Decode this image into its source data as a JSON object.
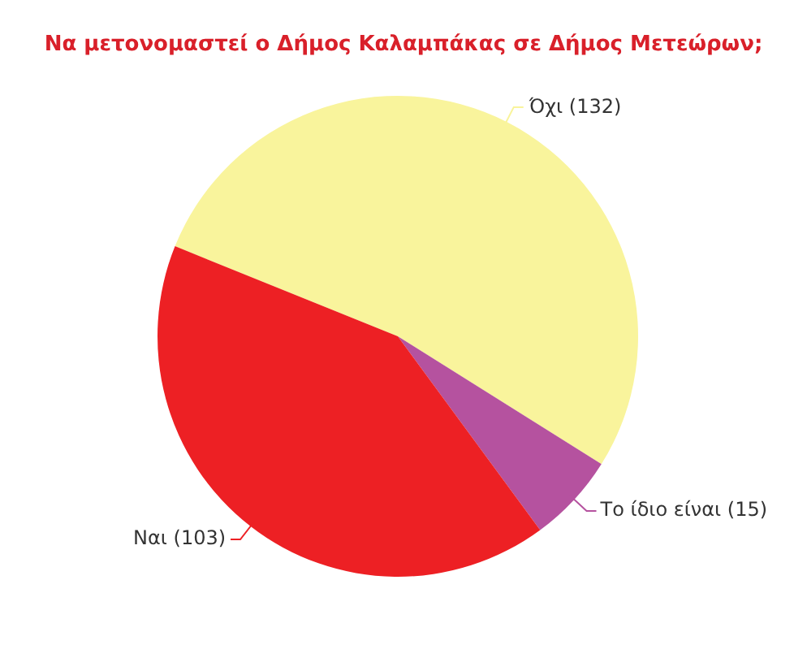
{
  "chart_data": {
    "type": "pie",
    "title": "Να μετονομαστεί ο Δήμος Καλαμπάκας σε Δήμος Μετεώρων;",
    "categories": [
      "Όχι (132)",
      "Το ίδιο είναι (15)",
      "Ναι (103)"
    ],
    "values": [
      132,
      15,
      103
    ],
    "colors": [
      "#f9f49c",
      "#b5529f",
      "#ed2024"
    ],
    "legend": false
  }
}
